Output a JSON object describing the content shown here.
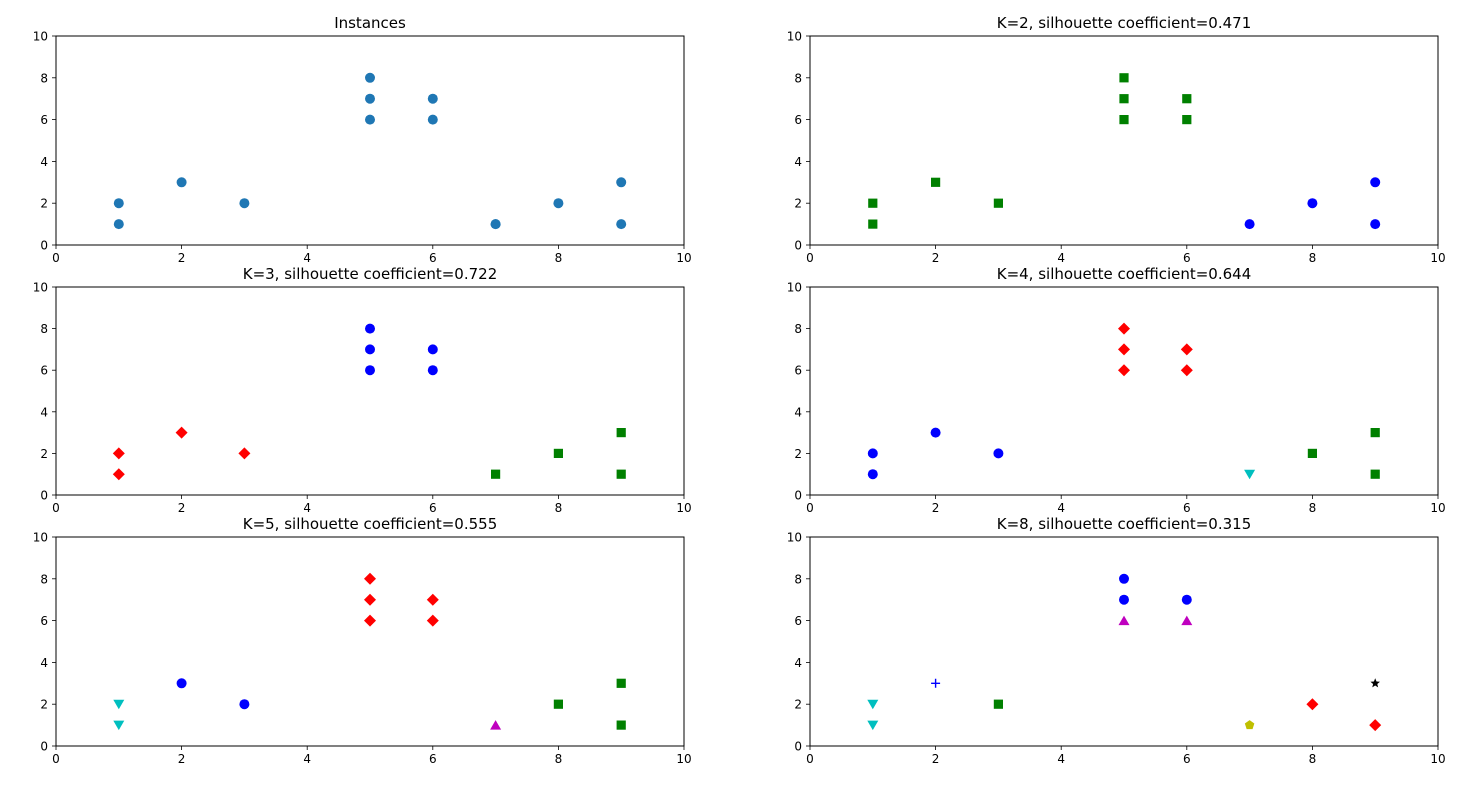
{
  "chart_data": [
    {
      "type": "scatter",
      "title": "Instances",
      "xlim": [
        0,
        10
      ],
      "ylim": [
        0,
        10
      ],
      "xticks": [
        "0",
        "2",
        "4",
        "6",
        "8",
        "10"
      ],
      "yticks": [
        "0",
        "2",
        "4",
        "6",
        "8",
        "10"
      ],
      "grid": false,
      "series": [
        {
          "color": "#1f77b4",
          "marker": "circle",
          "x": [
            1,
            2,
            3,
            1,
            5,
            6,
            5,
            5,
            6,
            7,
            8,
            9,
            7,
            9
          ],
          "y": [
            1,
            3,
            2,
            2,
            8,
            6,
            7,
            6,
            7,
            1,
            2,
            1,
            1,
            3
          ]
        }
      ]
    },
    {
      "type": "scatter",
      "title": "K=2, silhouette coefficient=0.471",
      "xlim": [
        0,
        10
      ],
      "ylim": [
        0,
        10
      ],
      "xticks": [
        "0",
        "2",
        "4",
        "6",
        "8",
        "10"
      ],
      "yticks": [
        "0",
        "2",
        "4",
        "6",
        "8",
        "10"
      ],
      "grid": false,
      "series": [
        {
          "color": "#008000",
          "marker": "square",
          "x": [
            1,
            1,
            2,
            3,
            5,
            5,
            5,
            6,
            6
          ],
          "y": [
            1,
            2,
            3,
            2,
            8,
            7,
            6,
            7,
            6
          ]
        },
        {
          "color": "#0000ff",
          "marker": "circle",
          "x": [
            7,
            8,
            9,
            9
          ],
          "y": [
            1,
            2,
            1,
            3
          ]
        }
      ]
    },
    {
      "type": "scatter",
      "title": "K=3, silhouette coefficient=0.722",
      "xlim": [
        0,
        10
      ],
      "ylim": [
        0,
        10
      ],
      "xticks": [
        "0",
        "2",
        "4",
        "6",
        "8",
        "10"
      ],
      "yticks": [
        "0",
        "2",
        "4",
        "6",
        "8",
        "10"
      ],
      "grid": false,
      "series": [
        {
          "color": "#ff0000",
          "marker": "diamond",
          "x": [
            1,
            1,
            2,
            3
          ],
          "y": [
            1,
            2,
            3,
            2
          ]
        },
        {
          "color": "#0000ff",
          "marker": "circle",
          "x": [
            5,
            5,
            5,
            6,
            6
          ],
          "y": [
            8,
            7,
            6,
            7,
            6
          ]
        },
        {
          "color": "#008000",
          "marker": "square",
          "x": [
            7,
            8,
            9,
            9
          ],
          "y": [
            1,
            2,
            1,
            3
          ]
        }
      ]
    },
    {
      "type": "scatter",
      "title": "K=4, silhouette coefficient=0.644",
      "xlim": [
        0,
        10
      ],
      "ylim": [
        0,
        10
      ],
      "xticks": [
        "0",
        "2",
        "4",
        "6",
        "8",
        "10"
      ],
      "yticks": [
        "0",
        "2",
        "4",
        "6",
        "8",
        "10"
      ],
      "grid": false,
      "series": [
        {
          "color": "#0000ff",
          "marker": "circle",
          "x": [
            1,
            1,
            2,
            3
          ],
          "y": [
            1,
            2,
            3,
            2
          ]
        },
        {
          "color": "#ff0000",
          "marker": "diamond",
          "x": [
            5,
            5,
            5,
            6,
            6
          ],
          "y": [
            8,
            7,
            6,
            7,
            6
          ]
        },
        {
          "color": "#00bfbf",
          "marker": "triangle-down",
          "x": [
            7
          ],
          "y": [
            1
          ]
        },
        {
          "color": "#008000",
          "marker": "square",
          "x": [
            8,
            9,
            9
          ],
          "y": [
            2,
            1,
            3
          ]
        }
      ]
    },
    {
      "type": "scatter",
      "title": "K=5, silhouette coefficient=0.555",
      "xlim": [
        0,
        10
      ],
      "ylim": [
        0,
        10
      ],
      "xticks": [
        "0",
        "2",
        "4",
        "6",
        "8",
        "10"
      ],
      "yticks": [
        "0",
        "2",
        "4",
        "6",
        "8",
        "10"
      ],
      "grid": false,
      "series": [
        {
          "color": "#00bfbf",
          "marker": "triangle-down",
          "x": [
            1,
            1
          ],
          "y": [
            1,
            2
          ]
        },
        {
          "color": "#0000ff",
          "marker": "circle",
          "x": [
            2,
            3
          ],
          "y": [
            3,
            2
          ]
        },
        {
          "color": "#ff0000",
          "marker": "diamond",
          "x": [
            5,
            5,
            5,
            6,
            6
          ],
          "y": [
            8,
            7,
            6,
            7,
            6
          ]
        },
        {
          "color": "#bf00bf",
          "marker": "triangle-up",
          "x": [
            7
          ],
          "y": [
            1
          ]
        },
        {
          "color": "#008000",
          "marker": "square",
          "x": [
            8,
            9,
            9
          ],
          "y": [
            2,
            1,
            3
          ]
        }
      ]
    },
    {
      "type": "scatter",
      "title": "K=8, silhouette coefficient=0.315",
      "xlim": [
        0,
        10
      ],
      "ylim": [
        0,
        10
      ],
      "xticks": [
        "0",
        "2",
        "4",
        "6",
        "8",
        "10"
      ],
      "yticks": [
        "0",
        "2",
        "4",
        "6",
        "8",
        "10"
      ],
      "grid": false,
      "series": [
        {
          "color": "#00bfbf",
          "marker": "triangle-down",
          "x": [
            1,
            1
          ],
          "y": [
            1,
            2
          ]
        },
        {
          "color": "#0000ff",
          "marker": "plus",
          "x": [
            2
          ],
          "y": [
            3
          ]
        },
        {
          "color": "#008000",
          "marker": "square",
          "x": [
            3
          ],
          "y": [
            2
          ]
        },
        {
          "color": "#0000ff",
          "marker": "circle",
          "x": [
            5,
            5,
            6
          ],
          "y": [
            8,
            7,
            7
          ]
        },
        {
          "color": "#bf00bf",
          "marker": "triangle-up",
          "x": [
            5,
            6
          ],
          "y": [
            6,
            6
          ]
        },
        {
          "color": "#bfbf00",
          "marker": "pentagon",
          "x": [
            7
          ],
          "y": [
            1
          ]
        },
        {
          "color": "#ff0000",
          "marker": "diamond",
          "x": [
            8,
            9
          ],
          "y": [
            2,
            1
          ]
        },
        {
          "color": "#000000",
          "marker": "star",
          "x": [
            9
          ],
          "y": [
            3
          ]
        }
      ]
    }
  ]
}
